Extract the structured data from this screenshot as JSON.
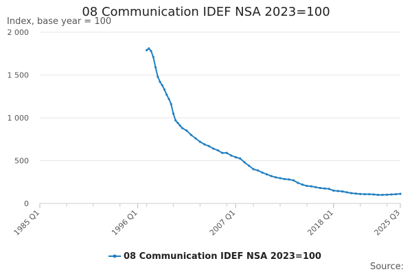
{
  "chart_data": {
    "type": "line",
    "title": "08 Communication IDEF NSA 2023=100",
    "ylabel": "Index, base year = 100",
    "xlabel": "",
    "source_label": "Source:",
    "ylim": [
      0,
      2000
    ],
    "y_ticks": [
      0,
      500,
      1000,
      1500,
      2000
    ],
    "y_tick_labels": [
      "0",
      "500",
      "1 000",
      "1 500",
      "2 000"
    ],
    "x_ticks": [
      1985.0,
      1996.0,
      2007.0,
      2018.0,
      2025.5
    ],
    "x_tick_labels": [
      "1985 Q1",
      "1996 Q1",
      "2007 Q1",
      "2018 Q1",
      "2025 Q3"
    ],
    "xlim": [
      1985.0,
      2025.5
    ],
    "grid": true,
    "legend_position": "bottom",
    "series": [
      {
        "name": "08 Communication IDEF NSA 2023=100",
        "color": "#1f7fc0",
        "x": [
          1997.0,
          1997.25,
          1997.5,
          1997.75,
          1998.0,
          1998.25,
          1998.5,
          1998.75,
          1999.0,
          1999.25,
          1999.5,
          1999.75,
          2000.0,
          2000.25,
          2000.5,
          2000.75,
          2001.0,
          2001.5,
          2002.0,
          2002.5,
          2003.0,
          2003.5,
          2004.0,
          2004.5,
          2005.0,
          2005.5,
          2006.0,
          2006.5,
          2007.0,
          2007.5,
          2008.0,
          2008.5,
          2009.0,
          2009.5,
          2010.0,
          2010.5,
          2011.0,
          2011.5,
          2012.0,
          2012.5,
          2013.0,
          2013.5,
          2014.0,
          2014.5,
          2015.0,
          2015.5,
          2016.0,
          2016.5,
          2017.0,
          2017.5,
          2018.0,
          2018.5,
          2019.0,
          2019.5,
          2020.0,
          2020.5,
          2021.0,
          2021.5,
          2022.0,
          2022.5,
          2023.0,
          2023.5,
          2024.0,
          2024.5,
          2025.0,
          2025.5
        ],
        "values": [
          1790,
          1810,
          1780,
          1710,
          1590,
          1480,
          1420,
          1380,
          1330,
          1270,
          1220,
          1160,
          1050,
          970,
          940,
          910,
          880,
          850,
          800,
          760,
          720,
          690,
          670,
          640,
          620,
          590,
          590,
          560,
          540,
          525,
          480,
          440,
          400,
          385,
          360,
          340,
          320,
          305,
          295,
          285,
          280,
          270,
          240,
          220,
          205,
          200,
          190,
          180,
          175,
          170,
          150,
          145,
          140,
          130,
          120,
          115,
          110,
          108,
          108,
          105,
          100,
          100,
          102,
          105,
          108,
          112
        ]
      }
    ]
  }
}
